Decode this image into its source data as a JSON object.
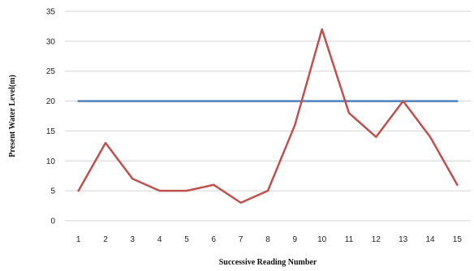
{
  "chart_data": {
    "type": "line",
    "title": "",
    "xlabel": "Successive Reading Number",
    "ylabel": "Present Water Level(m)",
    "x": [
      1,
      2,
      3,
      4,
      5,
      6,
      7,
      8,
      9,
      10,
      11,
      12,
      13,
      14,
      15
    ],
    "ylim": [
      0,
      35
    ],
    "yticks": [
      0,
      5,
      10,
      15,
      20,
      25,
      30,
      35
    ],
    "grid": true,
    "legend": "none",
    "series": [
      {
        "color": "#c0504d",
        "values": [
          5,
          13,
          7,
          5,
          5,
          6,
          3,
          5,
          16,
          32,
          18,
          14,
          20,
          14,
          6
        ]
      },
      {
        "color": "#4f81bd",
        "values": [
          20,
          20,
          20,
          20,
          20,
          20,
          20,
          20,
          20,
          20,
          20,
          20,
          20,
          20,
          20
        ]
      }
    ]
  }
}
